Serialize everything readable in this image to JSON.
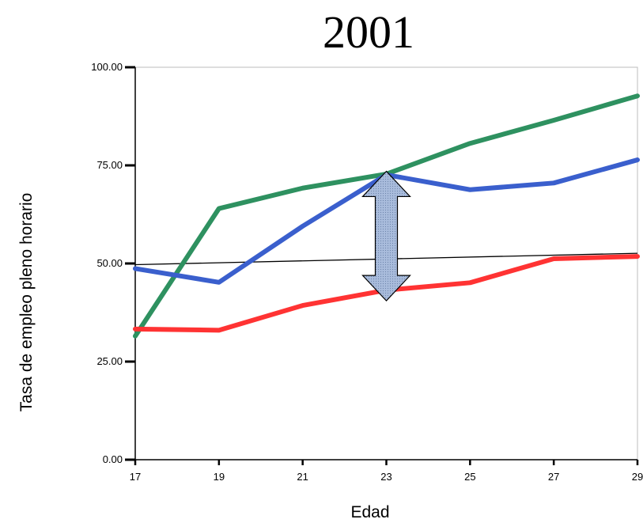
{
  "chart_data": {
    "type": "line",
    "title": "2001",
    "xlabel": "Edad",
    "ylabel": "Tasa de empleo pleno horario",
    "x": [
      17,
      19,
      21,
      23,
      25,
      27,
      29
    ],
    "x_tick_labels": [
      "17",
      "19",
      "21",
      "23",
      "25",
      "27",
      "29"
    ],
    "y_tick_values": [
      0,
      25,
      50,
      75,
      100
    ],
    "y_tick_labels": [
      "0.00",
      "25.00",
      "50.00",
      "75.00",
      "100.00"
    ],
    "xlim": [
      17,
      29
    ],
    "ylim": [
      0,
      100
    ],
    "grid": false,
    "series": [
      {
        "color": "#2e9160",
        "values": [
          31.5,
          64.0,
          69.2,
          72.8,
          80.6,
          86.5,
          92.7
        ]
      },
      {
        "color": "#3a5fcd",
        "values": [
          48.7,
          45.2,
          59.5,
          72.6,
          68.8,
          70.5,
          76.4
        ]
      },
      {
        "color": "#ff3333",
        "values": [
          33.3,
          33.0,
          39.3,
          43.2,
          45.1,
          51.2,
          51.8
        ]
      }
    ],
    "trend_line": {
      "color": "#000000",
      "from": [
        17,
        49.7
      ],
      "to": [
        29,
        52.6
      ]
    },
    "annotation": {
      "type": "double-arrow",
      "x": 23,
      "y_top": 73.5,
      "y_bottom": 40.5,
      "fill": "#9eb3d4"
    }
  }
}
